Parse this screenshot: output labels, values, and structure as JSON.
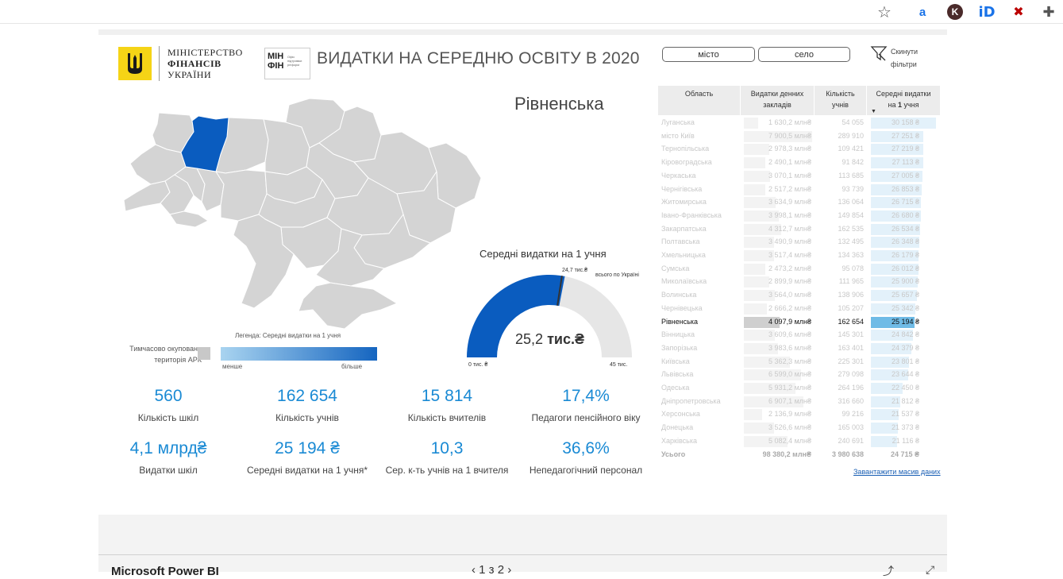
{
  "browser": {
    "icons": [
      "star-icon",
      "amazon-extension-icon",
      "k-extension-icon",
      "id-extension-icon",
      "blocked-extension-icon",
      "puzzle-icon"
    ],
    "ext_a": "a",
    "ext_k": "K",
    "ext_id": "iD"
  },
  "header": {
    "ministry_line1": "МІНІСТЕРСТВО",
    "ministry_line2": "ФІНАНСІВ",
    "ministry_line3": "УКРАЇНИ",
    "minfin_logo": "МІН ФІН",
    "minfin_sub": "Офіс підтримки реформ",
    "title": "ВИДАТКИ НА СЕРЕДНЮ ОСВІТУ В 2020"
  },
  "filters": {
    "city": "місто",
    "village": "село",
    "reset_line1": "Скинути",
    "reset_line2": "фільтри"
  },
  "selected_region": "Рівненська",
  "map": {
    "legend_caption": "Легенда: Середні видатки на 1 учня",
    "occupied_line1": "Тимчасово окупована",
    "occupied_line2": "територія АРК",
    "less": "менше",
    "more": "більше",
    "colors": {
      "default": "#d4d4d4",
      "selected": "#0a5cbf",
      "border": "#ffffff"
    }
  },
  "gauge": {
    "title": "Середні видатки на 1 учня",
    "value_num": "25,2",
    "value_unit": "тис.₴",
    "target_value": "24,7 тис.₴",
    "target_label": "всього по Україні",
    "min_label": "0 тис. ₴",
    "max_label": "45 тис.",
    "value": 25.2,
    "target": 24.7,
    "max": 45,
    "colors": {
      "fill": "#0a5cbf",
      "track": "#e6e6e6",
      "target": "#333333"
    }
  },
  "kpis": [
    {
      "value": "560",
      "label": "Кількість шкіл"
    },
    {
      "value": "162 654",
      "label": "Кількість учнів"
    },
    {
      "value": "15 814",
      "label": "Кількість вчителів"
    },
    {
      "value": "17,4%",
      "label": "Педагоги пенсійного віку"
    },
    {
      "value": "4,1 млрд₴",
      "label": "Видатки шкіл"
    },
    {
      "value": "25 194 ₴",
      "label": "Середні видатки на 1 учня*"
    },
    {
      "value": "10,3",
      "label": "Сер. к-ть учнів на 1 вчителя"
    },
    {
      "value": "36,6%",
      "label": "Непедагогічний персонал"
    }
  ],
  "table": {
    "headers": {
      "region": "Область",
      "spend_1": "Видатки денних",
      "spend_2": "закладів",
      "students_1": "Кількість",
      "students_2": "учнів",
      "avg_1": "Середні видатки",
      "avg_2a": "на ",
      "avg_2b": "1",
      "avg_2c": " учня"
    },
    "sort_indicator": "▼",
    "rows": [
      {
        "region": "Луганська",
        "spend": "1 630,2 млн₴",
        "students": "54 055",
        "avg": "30 158 ₴",
        "s": 1630.2,
        "a": 30158
      },
      {
        "region": "місто Київ",
        "spend": "7 900,5 млн₴",
        "students": "289 910",
        "avg": "27 251 ₴",
        "s": 7900.5,
        "a": 27251
      },
      {
        "region": "Тернопільська",
        "spend": "2 978,3 млн₴",
        "students": "109 421",
        "avg": "27 219 ₴",
        "s": 2978.3,
        "a": 27219
      },
      {
        "region": "Кіровоградська",
        "spend": "2 490,1 млн₴",
        "students": "91 842",
        "avg": "27 113 ₴",
        "s": 2490.1,
        "a": 27113
      },
      {
        "region": "Черкаська",
        "spend": "3 070,1 млн₴",
        "students": "113 685",
        "avg": "27 005 ₴",
        "s": 3070.1,
        "a": 27005
      },
      {
        "region": "Чернігівська",
        "spend": "2 517,2 млн₴",
        "students": "93 739",
        "avg": "26 853 ₴",
        "s": 2517.2,
        "a": 26853
      },
      {
        "region": "Житомирська",
        "spend": "3 634,9 млн₴",
        "students": "136 064",
        "avg": "26 715 ₴",
        "s": 3634.9,
        "a": 26715
      },
      {
        "region": "Івано-Франківська",
        "spend": "3 998,1 млн₴",
        "students": "149 854",
        "avg": "26 680 ₴",
        "s": 3998.1,
        "a": 26680
      },
      {
        "region": "Закарпатська",
        "spend": "4 312,7 млн₴",
        "students": "162 535",
        "avg": "26 534 ₴",
        "s": 4312.7,
        "a": 26534
      },
      {
        "region": "Полтавська",
        "spend": "3 490,9 млн₴",
        "students": "132 495",
        "avg": "26 348 ₴",
        "s": 3490.9,
        "a": 26348
      },
      {
        "region": "Хмельницька",
        "spend": "3 517,4 млн₴",
        "students": "134 363",
        "avg": "26 179 ₴",
        "s": 3517.4,
        "a": 26179
      },
      {
        "region": "Сумська",
        "spend": "2 473,2 млн₴",
        "students": "95 078",
        "avg": "26 012 ₴",
        "s": 2473.2,
        "a": 26012
      },
      {
        "region": "Миколаївська",
        "spend": "2 899,9 млн₴",
        "students": "111 965",
        "avg": "25 900 ₴",
        "s": 2899.9,
        "a": 25900
      },
      {
        "region": "Волинська",
        "spend": "3 564,0 млн₴",
        "students": "138 906",
        "avg": "25 657 ₴",
        "s": 3564.0,
        "a": 25657
      },
      {
        "region": "Чернівецька",
        "spend": "2 666,2 млн₴",
        "students": "105 207",
        "avg": "25 342 ₴",
        "s": 2666.2,
        "a": 25342
      },
      {
        "region": "Рівненська",
        "spend": "4 097,9 млн₴",
        "students": "162 654",
        "avg": "25 194 ₴",
        "s": 4097.9,
        "a": 25194,
        "selected": true
      },
      {
        "region": "Вінницька",
        "spend": "3 609,6 млн₴",
        "students": "145 301",
        "avg": "24 842 ₴",
        "s": 3609.6,
        "a": 24842
      },
      {
        "region": "Запорізька",
        "spend": "3 983,6 млн₴",
        "students": "163 401",
        "avg": "24 379 ₴",
        "s": 3983.6,
        "a": 24379
      },
      {
        "region": "Київська",
        "spend": "5 362,3 млн₴",
        "students": "225 301",
        "avg": "23 801 ₴",
        "s": 5362.3,
        "a": 23801
      },
      {
        "region": "Львівська",
        "spend": "6 599,0 млн₴",
        "students": "279 098",
        "avg": "23 644 ₴",
        "s": 6599.0,
        "a": 23644
      },
      {
        "region": "Одеська",
        "spend": "5 931,2 млн₴",
        "students": "264 196",
        "avg": "22 450 ₴",
        "s": 5931.2,
        "a": 22450
      },
      {
        "region": "Дніпропетровська",
        "spend": "6 907,1 млн₴",
        "students": "316 660",
        "avg": "21 812 ₴",
        "s": 6907.1,
        "a": 21812
      },
      {
        "region": "Херсонська",
        "spend": "2 136,9 млн₴",
        "students": "99 216",
        "avg": "21 537 ₴",
        "s": 2136.9,
        "a": 21537
      },
      {
        "region": "Донецька",
        "spend": "3 526,6 млн₴",
        "students": "165 003",
        "avg": "21 373 ₴",
        "s": 3526.6,
        "a": 21373
      },
      {
        "region": "Харківська",
        "spend": "5 082,4 млн₴",
        "students": "240 691",
        "avg": "21 116 ₴",
        "s": 5082.4,
        "a": 21116
      }
    ],
    "total": {
      "region": "Усього",
      "spend": "98 380,2 млн₴",
      "students": "3 980 638",
      "avg": "24 715 ₴"
    },
    "download_link": "Завантажити масив даних"
  },
  "footer": {
    "app_name": "Microsoft Power BI",
    "pager": "1 з 2"
  }
}
